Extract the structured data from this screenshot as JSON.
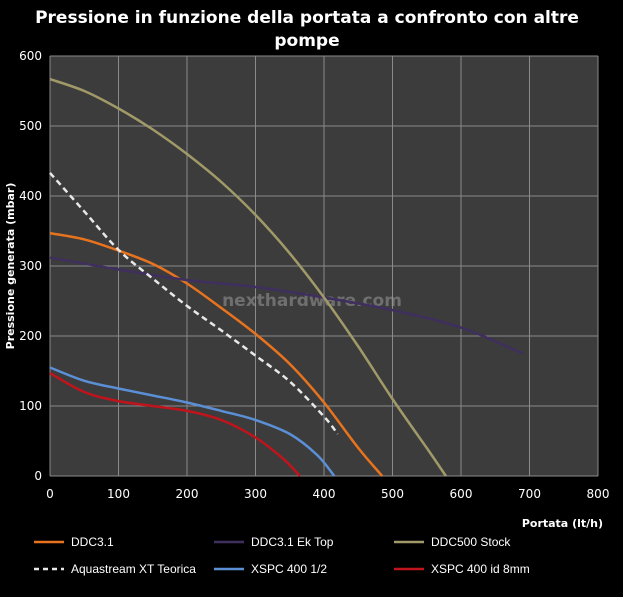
{
  "chart_data": {
    "type": "line",
    "title_lines": [
      "Pressione in funzione della portata a confronto con altre",
      "pompe"
    ],
    "xlabel": "Portata (lt/h)",
    "ylabel": "Pressione generata (mbar)",
    "xlim": [
      0,
      800
    ],
    "ylim": [
      0,
      600
    ],
    "x_ticks": [
      0,
      100,
      200,
      300,
      400,
      500,
      600,
      700,
      800
    ],
    "y_ticks": [
      0,
      100,
      200,
      300,
      400,
      500,
      600
    ],
    "grid": true,
    "legend_position": "bottom",
    "watermark": "nexthardware.com",
    "series": [
      {
        "name": "DDC3.1",
        "color": "#e8731e",
        "dash": false,
        "points": [
          [
            0,
            347
          ],
          [
            50,
            338
          ],
          [
            100,
            322
          ],
          [
            150,
            303
          ],
          [
            200,
            275
          ],
          [
            250,
            240
          ],
          [
            300,
            203
          ],
          [
            350,
            160
          ],
          [
            400,
            105
          ],
          [
            450,
            40
          ],
          [
            485,
            0
          ]
        ]
      },
      {
        "name": "DDC3.1 Ek Top",
        "color": "#3e2f5e",
        "dash": false,
        "points": [
          [
            0,
            312
          ],
          [
            100,
            295
          ],
          [
            200,
            280
          ],
          [
            300,
            270
          ],
          [
            400,
            255
          ],
          [
            500,
            237
          ],
          [
            600,
            212
          ],
          [
            690,
            175
          ]
        ]
      },
      {
        "name": "DDC500 Stock",
        "color": "#a19a68",
        "dash": false,
        "points": [
          [
            0,
            567
          ],
          [
            50,
            550
          ],
          [
            100,
            525
          ],
          [
            150,
            495
          ],
          [
            200,
            460
          ],
          [
            250,
            420
          ],
          [
            300,
            373
          ],
          [
            350,
            318
          ],
          [
            400,
            255
          ],
          [
            450,
            185
          ],
          [
            500,
            110
          ],
          [
            550,
            40
          ],
          [
            578,
            0
          ]
        ]
      },
      {
        "name": "Aquastream XT Teorica",
        "color": "#e8e8e8",
        "dash": true,
        "points": [
          [
            0,
            433
          ],
          [
            50,
            378
          ],
          [
            100,
            323
          ],
          [
            150,
            282
          ],
          [
            200,
            243
          ],
          [
            250,
            208
          ],
          [
            300,
            172
          ],
          [
            350,
            135
          ],
          [
            400,
            85
          ],
          [
            420,
            60
          ]
        ]
      },
      {
        "name": "XSPC 400 1/2",
        "color": "#5b8fd6",
        "dash": false,
        "points": [
          [
            0,
            155
          ],
          [
            50,
            136
          ],
          [
            100,
            125
          ],
          [
            150,
            115
          ],
          [
            200,
            105
          ],
          [
            250,
            93
          ],
          [
            300,
            80
          ],
          [
            350,
            60
          ],
          [
            390,
            30
          ],
          [
            415,
            0
          ]
        ]
      },
      {
        "name": "XSPC 400 id 8mm",
        "color": "#c0141c",
        "dash": false,
        "points": [
          [
            0,
            147
          ],
          [
            50,
            120
          ],
          [
            100,
            107
          ],
          [
            150,
            100
          ],
          [
            200,
            93
          ],
          [
            250,
            80
          ],
          [
            300,
            55
          ],
          [
            340,
            25
          ],
          [
            365,
            0
          ]
        ]
      }
    ]
  }
}
